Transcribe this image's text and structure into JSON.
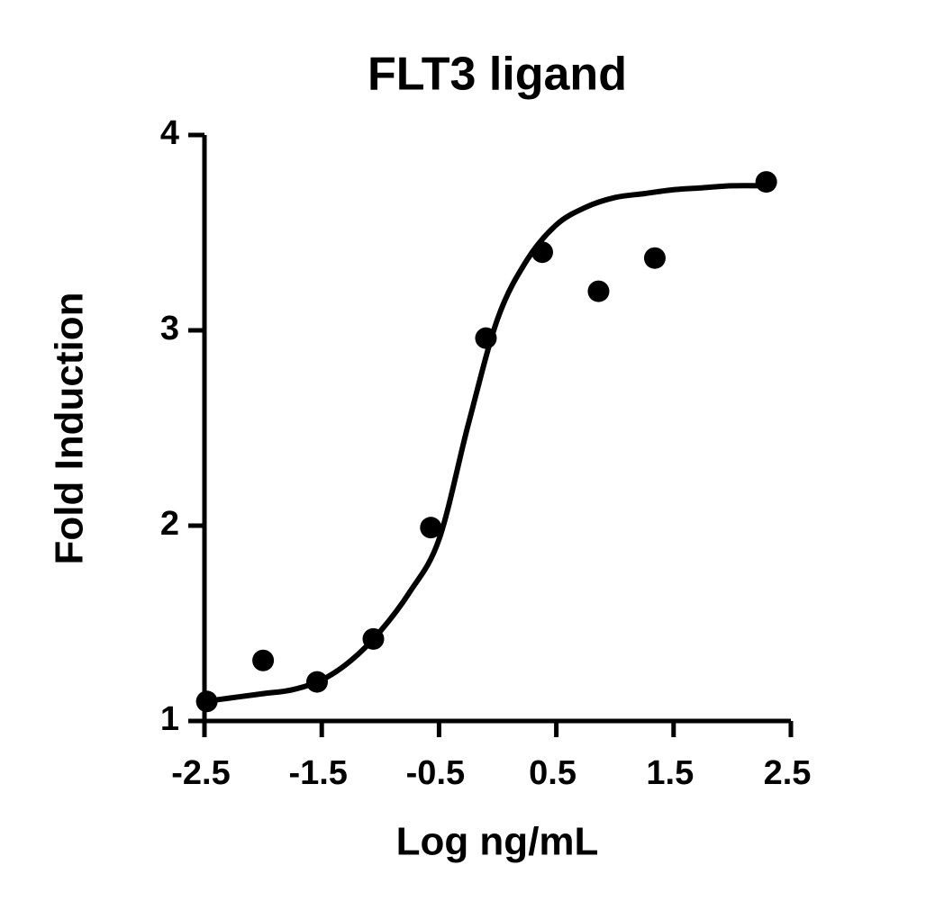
{
  "chart_data": {
    "type": "scatter",
    "title": "FLT3 ligand",
    "x_label": "Log ng/mL",
    "y_label": "Fold Induction",
    "xlim": [
      -2.5,
      2.5
    ],
    "xticks": [
      -2.5,
      -1.5,
      -0.5,
      0.5,
      1.5,
      2.5
    ],
    "ylim": [
      1,
      4
    ],
    "yticks": [
      1,
      2,
      3,
      4
    ],
    "grid": false,
    "series": [
      {
        "type": "scatter",
        "color": "#000000",
        "x": [
          -2.48,
          -2.0,
          -1.54,
          -1.06,
          -0.57,
          -0.1,
          0.38,
          0.86,
          1.34,
          2.29
        ],
        "values": [
          1.1,
          1.31,
          1.2,
          1.42,
          1.99,
          2.96,
          3.4,
          3.2,
          3.37,
          3.76
        ]
      },
      {
        "type": "line",
        "color": "#000000",
        "x": [
          -2.5,
          -2.25,
          -2.0,
          -1.75,
          -1.5,
          -1.25,
          -1.0,
          -0.75,
          -0.5,
          -0.25,
          0.0,
          0.25,
          0.5,
          0.75,
          1.0,
          1.25,
          1.5,
          1.75,
          2.0,
          2.3
        ],
        "values": [
          1.1,
          1.12,
          1.14,
          1.16,
          1.21,
          1.31,
          1.46,
          1.66,
          1.93,
          2.52,
          3.06,
          3.36,
          3.54,
          3.63,
          3.68,
          3.7,
          3.72,
          3.73,
          3.74,
          3.74
        ]
      }
    ]
  }
}
